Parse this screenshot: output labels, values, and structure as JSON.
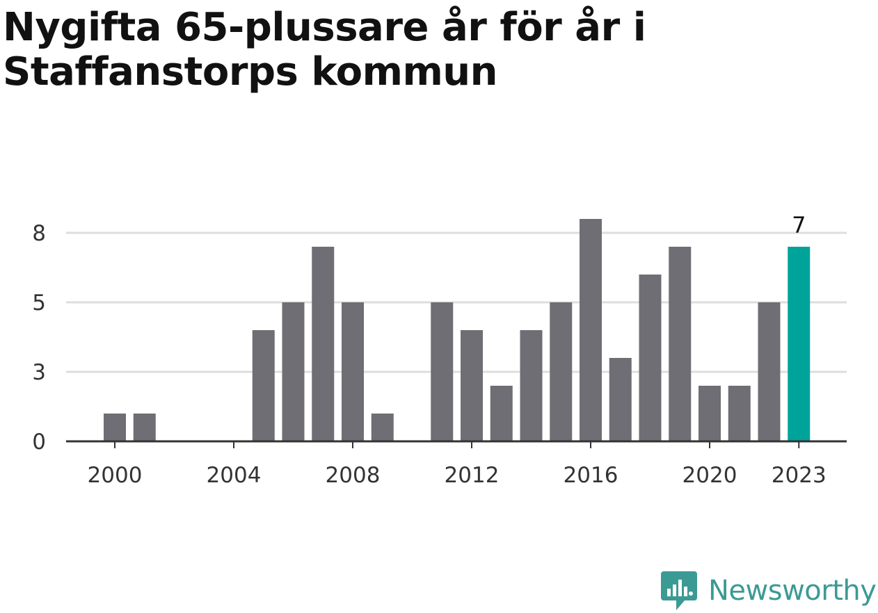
{
  "title": "Nygifta 65-plussare år för år i Staffanstorps kommun",
  "brand": {
    "name": "Newsworthy",
    "icon": "newsworthy-logo-icon",
    "color": "#3c9a94"
  },
  "chart_data": {
    "type": "bar",
    "categories": [
      "2000",
      "2001",
      "2002",
      "2003",
      "2004",
      "2005",
      "2006",
      "2007",
      "2008",
      "2009",
      "2010",
      "2011",
      "2012",
      "2013",
      "2014",
      "2015",
      "2016",
      "2017",
      "2018",
      "2019",
      "2020",
      "2021",
      "2022",
      "2023"
    ],
    "values": [
      1,
      1,
      0,
      0,
      0,
      4,
      5,
      7,
      5,
      1,
      0,
      5,
      4,
      2,
      4,
      5,
      8,
      3,
      6,
      7,
      2,
      2,
      5,
      7
    ],
    "xticks": [
      "2000",
      "2004",
      "2008",
      "2012",
      "2016",
      "2020",
      "2023"
    ],
    "yticks": [
      "0",
      "3",
      "5",
      "8"
    ],
    "ytick_values": [
      0,
      2.5,
      5,
      7.5
    ],
    "ylim": [
      0,
      7.5
    ],
    "highlight": {
      "category": "2023",
      "label": "7"
    },
    "colors": {
      "bar": "#6f6e74",
      "highlight": "#00a39a",
      "grid": "#dddddd",
      "axis": "#333333"
    },
    "grid": true,
    "legend": "none"
  }
}
